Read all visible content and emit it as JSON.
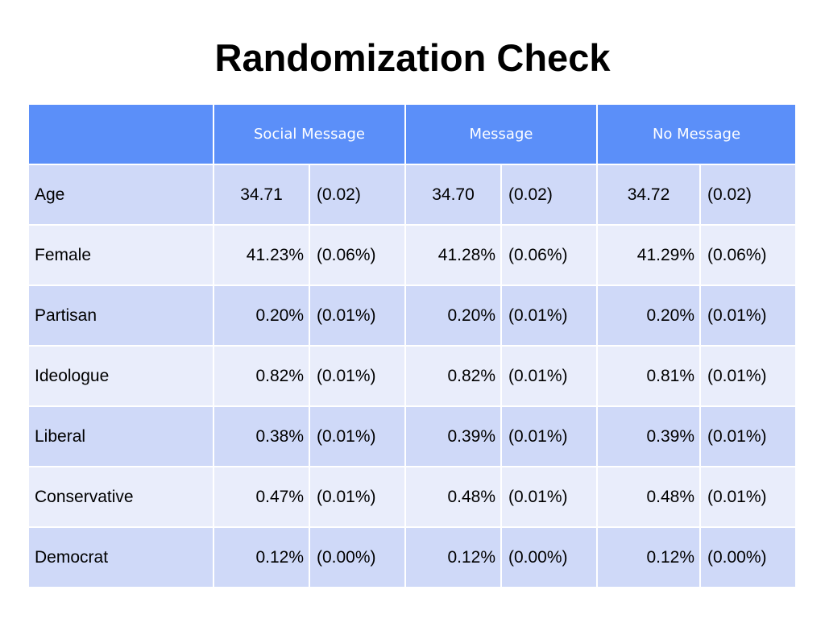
{
  "title": "Randomization Check",
  "columns": [
    "",
    "Social Message",
    "Message",
    "No Message"
  ],
  "rows": [
    {
      "label": "Age",
      "values": [
        "34.71",
        "(0.02)",
        "34.70",
        "(0.02)",
        "34.72",
        "(0.02)"
      ]
    },
    {
      "label": "Female",
      "values": [
        "41.23%",
        "(0.06%)",
        "41.28%",
        "(0.06%)",
        "41.29%",
        "(0.06%)"
      ]
    },
    {
      "label": "Partisan",
      "values": [
        "0.20%",
        "(0.01%)",
        "0.20%",
        "(0.01%)",
        "0.20%",
        "(0.01%)"
      ]
    },
    {
      "label": "Ideologue",
      "values": [
        "0.82%",
        "(0.01%)",
        "0.82%",
        "(0.01%)",
        "0.81%",
        "(0.01%)"
      ]
    },
    {
      "label": "Liberal",
      "values": [
        "0.38%",
        "(0.01%)",
        "0.39%",
        "(0.01%)",
        "0.39%",
        "(0.01%)"
      ]
    },
    {
      "label": "Conservative",
      "values": [
        "0.47%",
        "(0.01%)",
        "0.48%",
        "(0.01%)",
        "0.48%",
        "(0.01%)"
      ]
    },
    {
      "label": "Democrat",
      "values": [
        "0.12%",
        "(0.00%)",
        "0.12%",
        "(0.00%)",
        "0.12%",
        "(0.00%)"
      ]
    }
  ],
  "colors": {
    "header": "#5b8ff9",
    "row_dark": "#cfd9f8",
    "row_light": "#e9edfb"
  }
}
